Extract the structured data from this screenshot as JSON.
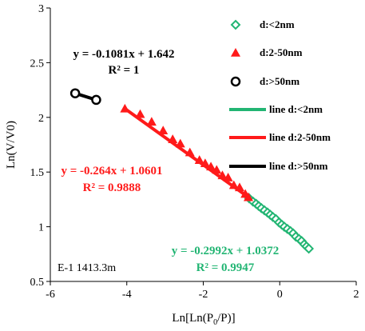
{
  "chart_data": {
    "type": "scatter",
    "xlabel": "Ln[Ln(P0/P)]",
    "ylabel": "Ln(V/V0)",
    "xlim": [
      -6,
      2
    ],
    "ylim": [
      0.5,
      3
    ],
    "xticks": [
      "-6",
      "-4",
      "-2",
      "0",
      "2"
    ],
    "yticks": [
      "0.5",
      "1",
      "1.5",
      "2",
      "2.5",
      "3"
    ],
    "grid": false,
    "legend_position": "top-right",
    "sample_label": "E-1 1413.3m",
    "colors": {
      "green": "#22b573",
      "red": "#ff1a1a",
      "black": "#000000"
    },
    "series": [
      {
        "name": "d:<2nm",
        "marker": "diamond-open",
        "color": "#22b573",
        "points": [
          [
            -0.8,
            1.26
          ],
          [
            -0.7,
            1.23
          ],
          [
            -0.62,
            1.21
          ],
          [
            -0.55,
            1.19
          ],
          [
            -0.48,
            1.17
          ],
          [
            -0.4,
            1.15
          ],
          [
            -0.32,
            1.13
          ],
          [
            -0.25,
            1.11
          ],
          [
            -0.18,
            1.09
          ],
          [
            -0.1,
            1.07
          ],
          [
            -0.02,
            1.04
          ],
          [
            0.05,
            1.02
          ],
          [
            0.12,
            1.0
          ],
          [
            0.2,
            0.98
          ],
          [
            0.28,
            0.96
          ],
          [
            0.35,
            0.94
          ],
          [
            0.42,
            0.91
          ],
          [
            0.5,
            0.89
          ],
          [
            0.57,
            0.87
          ],
          [
            0.64,
            0.84
          ],
          [
            0.7,
            0.82
          ],
          [
            0.76,
            0.8
          ]
        ]
      },
      {
        "name": "d:2-50nm",
        "marker": "triangle",
        "color": "#ff1a1a",
        "points": [
          [
            -4.05,
            2.08
          ],
          [
            -3.65,
            2.03
          ],
          [
            -3.35,
            1.96
          ],
          [
            -3.05,
            1.88
          ],
          [
            -2.8,
            1.8
          ],
          [
            -2.6,
            1.76
          ],
          [
            -2.35,
            1.68
          ],
          [
            -2.1,
            1.61
          ],
          [
            -1.95,
            1.58
          ],
          [
            -1.8,
            1.55
          ],
          [
            -1.65,
            1.52
          ],
          [
            -1.5,
            1.47
          ],
          [
            -1.35,
            1.45
          ],
          [
            -1.2,
            1.38
          ],
          [
            -1.05,
            1.36
          ],
          [
            -0.9,
            1.3
          ],
          [
            -0.82,
            1.27
          ]
        ]
      },
      {
        "name": "d:>50nm",
        "marker": "circle-open",
        "color": "#000000",
        "points": [
          [
            -5.35,
            2.22
          ],
          [
            -4.8,
            2.16
          ]
        ]
      }
    ],
    "trendlines": [
      {
        "name": "line d:<2nm",
        "color": "#22b573",
        "x_range": [
          -0.8,
          0.78
        ],
        "equation": "y = -0.2992x + 1.0372",
        "r2": "R² = 0.9947"
      },
      {
        "name": "line d:2-50nm",
        "color": "#ff1a1a",
        "x_range": [
          -4.05,
          -0.8
        ],
        "equation": "y = -0.264x + 1.0601",
        "r2": "R² = 0.9888"
      },
      {
        "name": "line d:>50nm",
        "color": "#000000",
        "x_range": [
          -5.35,
          -4.8
        ],
        "equation": "y = -0.1081x + 1.642",
        "r2": "R² = 1"
      }
    ]
  }
}
